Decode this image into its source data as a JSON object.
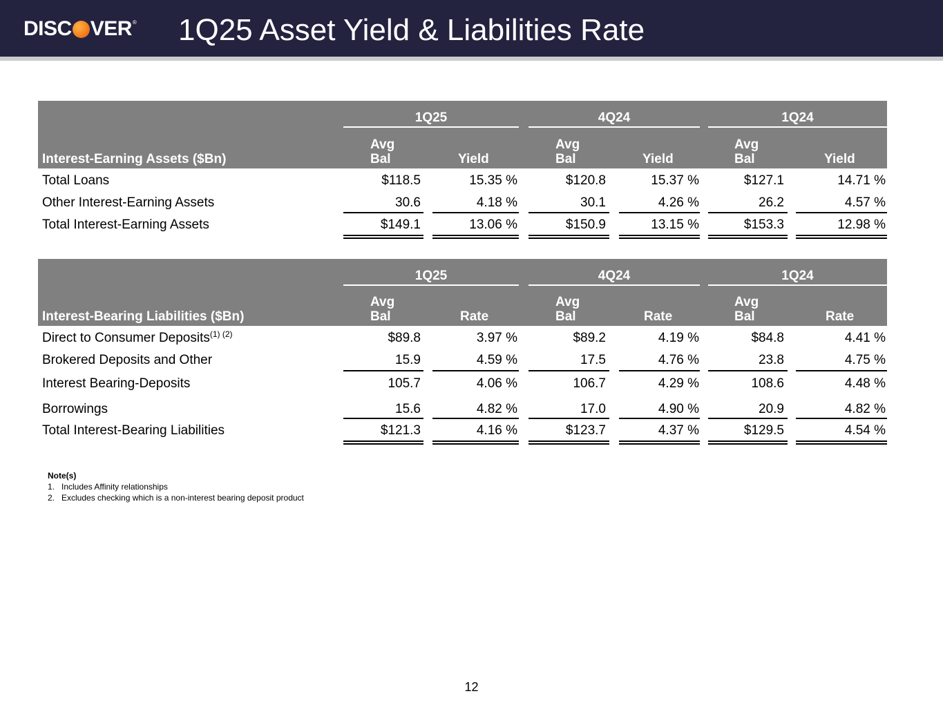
{
  "header": {
    "logo_text_left": "DISC",
    "logo_text_right": "VER",
    "logo_reg": "®",
    "title": "1Q25 Asset Yield & Liabilities Rate"
  },
  "assets": {
    "label": "Interest-Earning Assets ($Bn)",
    "periods": [
      "1Q25",
      "4Q24",
      "1Q24"
    ],
    "col_top": "Avg",
    "col_bal": "Bal",
    "col_rate": "Yield",
    "rows": [
      {
        "label": "Total Loans",
        "values": [
          "$118.5",
          "15.35 %",
          "$120.8",
          "15.37 %",
          "$127.1",
          "14.71 %"
        ]
      },
      {
        "label": "Other Interest-Earning Assets",
        "values": [
          "30.6",
          "4.18 %",
          "30.1",
          "4.26 %",
          "26.2",
          "4.57 %"
        ]
      },
      {
        "label": "Total Interest-Earning Assets",
        "values": [
          "$149.1",
          "13.06 %",
          "$150.9",
          "13.15 %",
          "$153.3",
          "12.98 %"
        ]
      }
    ]
  },
  "liabilities": {
    "label": "Interest-Bearing Liabilities ($Bn)",
    "periods": [
      "1Q25",
      "4Q24",
      "1Q24"
    ],
    "col_top": "Avg",
    "col_bal": "Bal",
    "col_rate": "Rate",
    "rows": [
      {
        "label": "Direct to Consumer Deposits",
        "sup": "(1) (2)",
        "values": [
          "$89.8",
          "3.97 %",
          "$89.2",
          "4.19 %",
          "$84.8",
          "4.41 %"
        ]
      },
      {
        "label": "Brokered Deposits and Other",
        "values": [
          "15.9",
          "4.59 %",
          "17.5",
          "4.76 %",
          "23.8",
          "4.75 %"
        ]
      },
      {
        "label": "Interest Bearing-Deposits",
        "values": [
          "105.7",
          "4.06 %",
          "106.7",
          "4.29 %",
          "108.6",
          "4.48 %"
        ]
      },
      {
        "label": "Borrowings",
        "values": [
          "15.6",
          "4.82 %",
          "17.0",
          "4.90 %",
          "20.9",
          "4.82 %"
        ]
      },
      {
        "label": "Total Interest-Bearing Liabilities",
        "values": [
          "$121.3",
          "4.16 %",
          "$123.7",
          "4.37 %",
          "$129.5",
          "4.54 %"
        ]
      }
    ]
  },
  "notes": {
    "heading": "Note(s)",
    "items": [
      "1.   Includes Affinity relationships",
      "2.   Excludes checking which is a non-interest bearing deposit product"
    ]
  },
  "page_number": "12"
}
